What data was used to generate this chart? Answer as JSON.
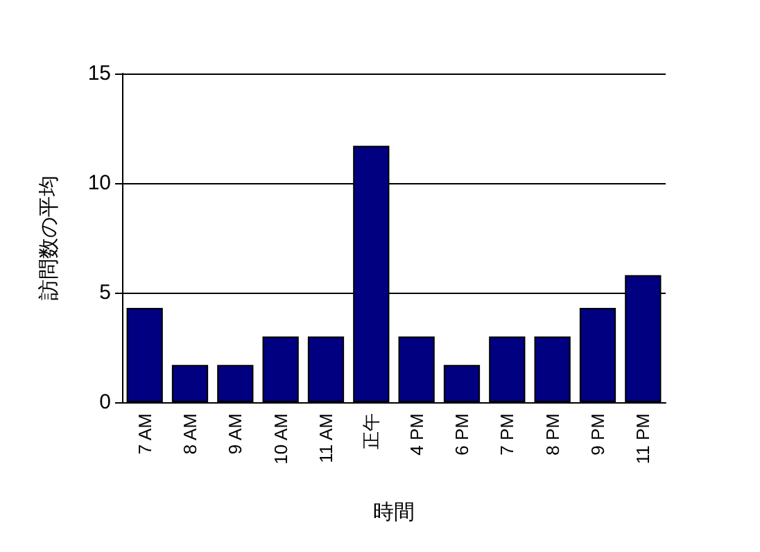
{
  "chart_data": {
    "type": "bar",
    "xlabel": "時間",
    "ylabel": "訪問数の平均",
    "categories": [
      "7 AM",
      "8 AM",
      "9 AM",
      "10 AM",
      "11 AM",
      "正午",
      "4 PM",
      "6 PM",
      "7 PM",
      "8 PM",
      "9 PM",
      "11 PM"
    ],
    "values": [
      4.3,
      1.7,
      1.7,
      3,
      3,
      11.7,
      3,
      1.7,
      3,
      3,
      4.3,
      5.8
    ],
    "color": "#000080",
    "ylim": [
      0,
      15
    ],
    "yticks": [
      0,
      5,
      10,
      15
    ],
    "grid": "y"
  }
}
